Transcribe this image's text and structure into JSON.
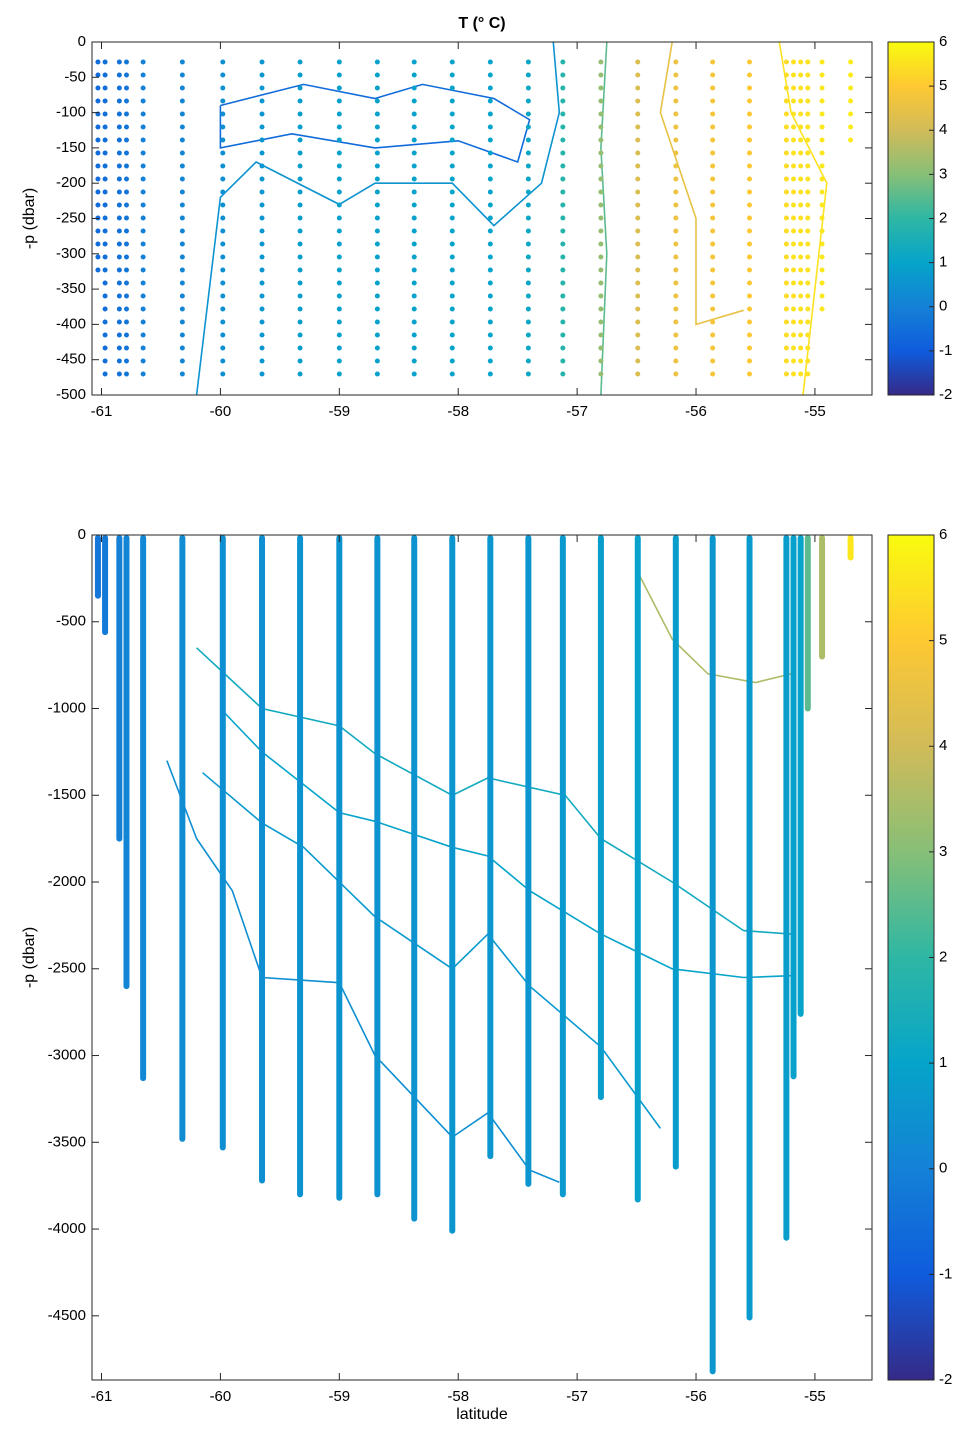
{
  "chart_data": [
    {
      "type": "scatter",
      "title": "T (° C)",
      "ylabel": "-p (dbar)",
      "xlim": [
        -61.08,
        -54.52
      ],
      "xticks": [
        -61,
        -60,
        -59,
        -58,
        -57,
        -56,
        -55
      ],
      "ylim": [
        -500,
        0
      ],
      "yticks": [
        0,
        -50,
        -100,
        -150,
        -200,
        -250,
        -300,
        -350,
        -400,
        -450,
        -500
      ],
      "colormap": [
        "#352a87",
        "#0f5cdd",
        "#1481d6",
        "#06a4ca",
        "#2eb7a4",
        "#87bf77",
        "#d1bb59",
        "#fec832",
        "#f9fb0e"
      ],
      "clim": [
        -2,
        6
      ],
      "cticks": [
        -2,
        -1,
        0,
        1,
        2,
        3,
        4,
        5,
        6
      ],
      "stations": {
        "x": [
          -61.03,
          -60.97,
          -60.85,
          -60.79,
          -60.65,
          -60.32,
          -59.98,
          -59.65,
          -59.33,
          -59.0,
          -58.68,
          -58.37,
          -58.05,
          -57.73,
          -57.41,
          -57.12,
          -56.8,
          -56.49,
          -56.17,
          -55.86,
          -55.55,
          -55.24,
          -55.18,
          -55.12,
          -55.06,
          -54.94,
          -54.7
        ],
        "bottom": [
          -340,
          -480,
          -480,
          -480,
          -480,
          -480,
          -480,
          -480,
          -480,
          -480,
          -480,
          -480,
          -480,
          -480,
          -480,
          -480,
          -480,
          -480,
          -480,
          -480,
          -480,
          -480,
          -480,
          -480,
          -480,
          -380,
          -140
        ],
        "values": [
          -0.6,
          -0.5,
          -0.4,
          -0.3,
          0.0,
          0.1,
          0.4,
          0.6,
          0.8,
          0.9,
          0.9,
          0.9,
          1.0,
          1.0,
          1.1,
          1.8,
          3.2,
          4.2,
          4.6,
          4.8,
          5.0,
          5.4,
          5.5,
          5.5,
          5.5,
          5.6,
          5.7
        ]
      },
      "contours": [
        {
          "level": -0.6,
          "x": [
            -60.0,
            -59.3,
            -58.7,
            -58.3,
            -57.7,
            -57.4,
            -57.5,
            -58.0,
            -58.7,
            -59.4,
            -60.0,
            -60.0
          ],
          "y": [
            -90,
            -60,
            -80,
            -60,
            -80,
            -110,
            -170,
            -140,
            -150,
            -130,
            -150,
            -90
          ]
        },
        {
          "level": 0.5,
          "x": [
            -60.2,
            -60.0,
            -59.7,
            -59.0,
            -58.7,
            -58.05,
            -57.7,
            -57.3,
            -57.15,
            -57.2
          ],
          "y": [
            -500,
            -220,
            -170,
            -230,
            -200,
            -200,
            -260,
            -200,
            -100,
            0
          ]
        },
        {
          "level": 2.5,
          "x": [
            -56.75,
            -56.8,
            -56.75,
            -56.8
          ],
          "y": [
            0,
            -150,
            -300,
            -500
          ]
        },
        {
          "level": 4.5,
          "x": [
            -56.2,
            -56.3,
            -56.0,
            -56.0,
            -55.6
          ],
          "y": [
            0,
            -100,
            -250,
            -400,
            -380
          ]
        },
        {
          "level": 5.5,
          "x": [
            -55.3,
            -55.2,
            -54.9,
            -55.1
          ],
          "y": [
            0,
            -100,
            -200,
            -500
          ]
        }
      ]
    },
    {
      "type": "scatter",
      "ylabel": "-p (dbar)",
      "xlabel": "latitude",
      "xlim": [
        -61.08,
        -54.52
      ],
      "xticks": [
        -61,
        -60,
        -59,
        -58,
        -57,
        -56,
        -55
      ],
      "ylim": [
        -4870,
        0
      ],
      "yticks": [
        0,
        -500,
        -1000,
        -1500,
        -2000,
        -2500,
        -3000,
        -3500,
        -4000,
        -4500
      ],
      "colormap": [
        "#352a87",
        "#0f5cdd",
        "#1481d6",
        "#06a4ca",
        "#2eb7a4",
        "#87bf77",
        "#d1bb59",
        "#fec832",
        "#f9fb0e"
      ],
      "clim": [
        -2,
        6
      ],
      "cticks": [
        -2,
        -1,
        0,
        1,
        2,
        3,
        4,
        5,
        6
      ],
      "stations": {
        "x": [
          -61.03,
          -60.97,
          -60.85,
          -60.79,
          -60.65,
          -60.32,
          -59.98,
          -59.65,
          -59.33,
          -59.0,
          -58.68,
          -58.37,
          -58.05,
          -57.73,
          -57.41,
          -57.12,
          -56.8,
          -56.49,
          -56.17,
          -55.86,
          -55.55,
          -55.24,
          -55.18,
          -55.12,
          -55.06,
          -54.94,
          -54.7
        ],
        "bottom": [
          -350,
          -560,
          -1750,
          -2600,
          -3130,
          -3480,
          -3530,
          -3720,
          -3800,
          -3820,
          -3800,
          -3940,
          -4010,
          -3580,
          -3740,
          -3800,
          -3240,
          -3830,
          -3640,
          -4820,
          -4510,
          -4050,
          -3120,
          -2760,
          -1000,
          -700,
          -130
        ],
        "values": [
          -0.3,
          -0.2,
          0.0,
          0.1,
          0.2,
          0.3,
          0.4,
          0.4,
          0.5,
          0.5,
          0.5,
          0.5,
          0.6,
          0.6,
          0.6,
          0.7,
          0.8,
          0.9,
          0.8,
          0.6,
          0.7,
          0.8,
          0.9,
          1.0,
          2.5,
          3.5,
          5.6
        ]
      },
      "contours": [
        {
          "level": 0.4,
          "x": [
            -60.45,
            -60.2,
            -59.9,
            -59.65,
            -59.0,
            -58.7,
            -58.05,
            -57.75,
            -57.4,
            -57.15
          ],
          "y": [
            -1300,
            -1750,
            -2050,
            -2550,
            -2580,
            -3000,
            -3470,
            -3330,
            -3660,
            -3730
          ]
        },
        {
          "level": 0.7,
          "x": [
            -60.15,
            -59.65,
            -59.3,
            -58.7,
            -58.05,
            -57.75,
            -57.4,
            -56.8,
            -56.3
          ],
          "y": [
            -1370,
            -1660,
            -1800,
            -2200,
            -2500,
            -2300,
            -2600,
            -2950,
            -3420
          ]
        },
        {
          "level": 1.0,
          "x": [
            -60.0,
            -59.65,
            -59.0,
            -58.7,
            -58.05,
            -57.75,
            -57.4,
            -56.8,
            -56.2,
            -55.6,
            -55.2
          ],
          "y": [
            -1000,
            -1250,
            -1600,
            -1650,
            -1800,
            -1850,
            -2050,
            -2300,
            -2500,
            -2550,
            -2540
          ]
        },
        {
          "level": 1.3,
          "x": [
            -60.2,
            -59.65,
            -59.0,
            -58.7,
            -58.05,
            -57.75,
            -57.1,
            -56.8,
            -56.2,
            -55.6,
            -55.2
          ],
          "y": [
            -650,
            -1000,
            -1100,
            -1260,
            -1500,
            -1400,
            -1500,
            -1750,
            -2000,
            -2280,
            -2300
          ]
        },
        {
          "level": 3.5,
          "x": [
            -56.5,
            -56.2,
            -55.9,
            -55.5,
            -55.2
          ],
          "y": [
            -200,
            -600,
            -800,
            -850,
            -800
          ]
        }
      ]
    }
  ]
}
